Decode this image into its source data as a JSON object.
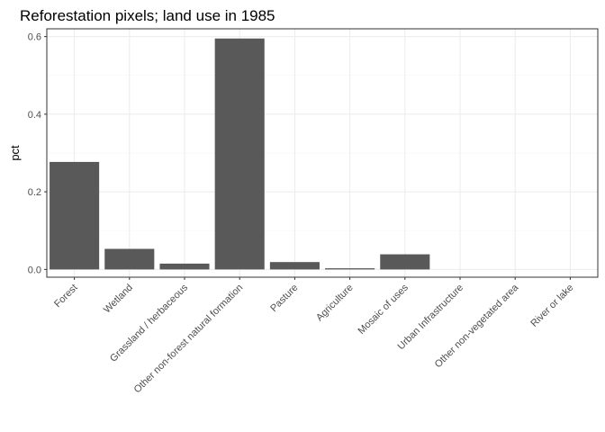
{
  "chart_data": {
    "type": "bar",
    "title": "Reforestation pixels; land use in 1985",
    "xlabel": "",
    "ylabel": "pct",
    "ylim": [
      -0.02,
      0.62
    ],
    "yticks": [
      0.0,
      0.2,
      0.4,
      0.6
    ],
    "ytick_labels": [
      "0.0",
      "0.2",
      "0.4",
      "0.6"
    ],
    "grid": true,
    "bar_color": "#595959",
    "categories": [
      "Forest",
      "Wetland",
      "Grassland / herbaceous",
      "Other non-forest natural formation",
      "Pasture",
      "Agriculture",
      "Mosaic of uses",
      "Urban Infrastructure",
      "Other non-vegetated area",
      "River or lake"
    ],
    "values": [
      0.277,
      0.053,
      0.015,
      0.595,
      0.019,
      0.003,
      0.039,
      0.0,
      0.0,
      0.0
    ]
  }
}
